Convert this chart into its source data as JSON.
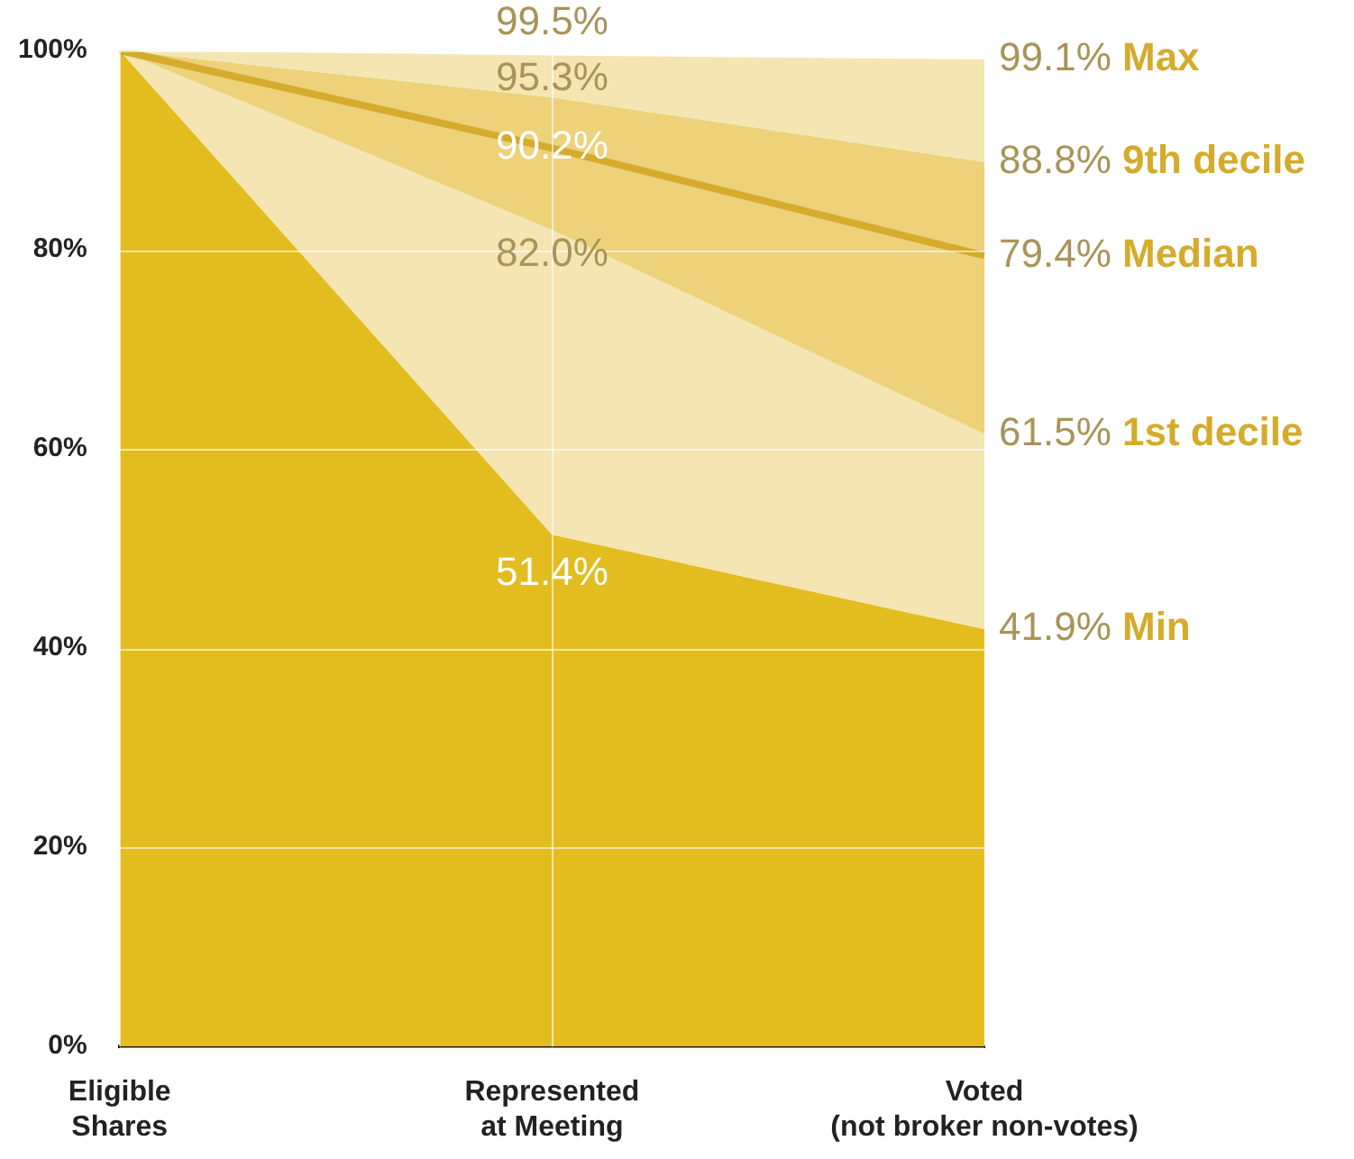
{
  "chart_data": {
    "type": "area",
    "categories": [
      "Eligible\nShares",
      "Represented\nat Meeting",
      "Voted\n(not broker non-votes)"
    ],
    "series": [
      {
        "name": "Min",
        "color": "#e3bd1f",
        "values": [
          100,
          51.4,
          41.9
        ],
        "value_labels": [
          null,
          "51.4%",
          "41.9%"
        ]
      },
      {
        "name": "1st decile",
        "color": "#f4e5b2",
        "values": [
          100,
          82.0,
          61.5
        ],
        "value_labels": [
          null,
          "82.0%",
          "61.5%"
        ]
      },
      {
        "name": "9th decile",
        "color": "#edd27a",
        "values": [
          100,
          95.3,
          88.8
        ],
        "value_labels": [
          null,
          "95.3%",
          "88.8%"
        ]
      },
      {
        "name": "Max",
        "color": "#f4e5b2",
        "values": [
          100,
          99.5,
          99.1
        ],
        "value_labels": [
          null,
          "99.5%",
          "99.1%"
        ]
      },
      {
        "name": "Median",
        "type": "line",
        "color": "#d4ab2c",
        "values": [
          100,
          90.2,
          79.4
        ],
        "value_labels": [
          null,
          "90.2%",
          "79.4%"
        ]
      }
    ],
    "ylim": [
      0,
      100
    ],
    "yticks": [
      {
        "value": 0,
        "label": "0%"
      },
      {
        "value": 20,
        "label": "20%"
      },
      {
        "value": 40,
        "label": "40%"
      },
      {
        "value": 60,
        "label": "60%"
      },
      {
        "value": 80,
        "label": "80%"
      },
      {
        "value": 100,
        "label": "100%"
      }
    ],
    "grid": true,
    "legend": false,
    "marker": "none"
  }
}
